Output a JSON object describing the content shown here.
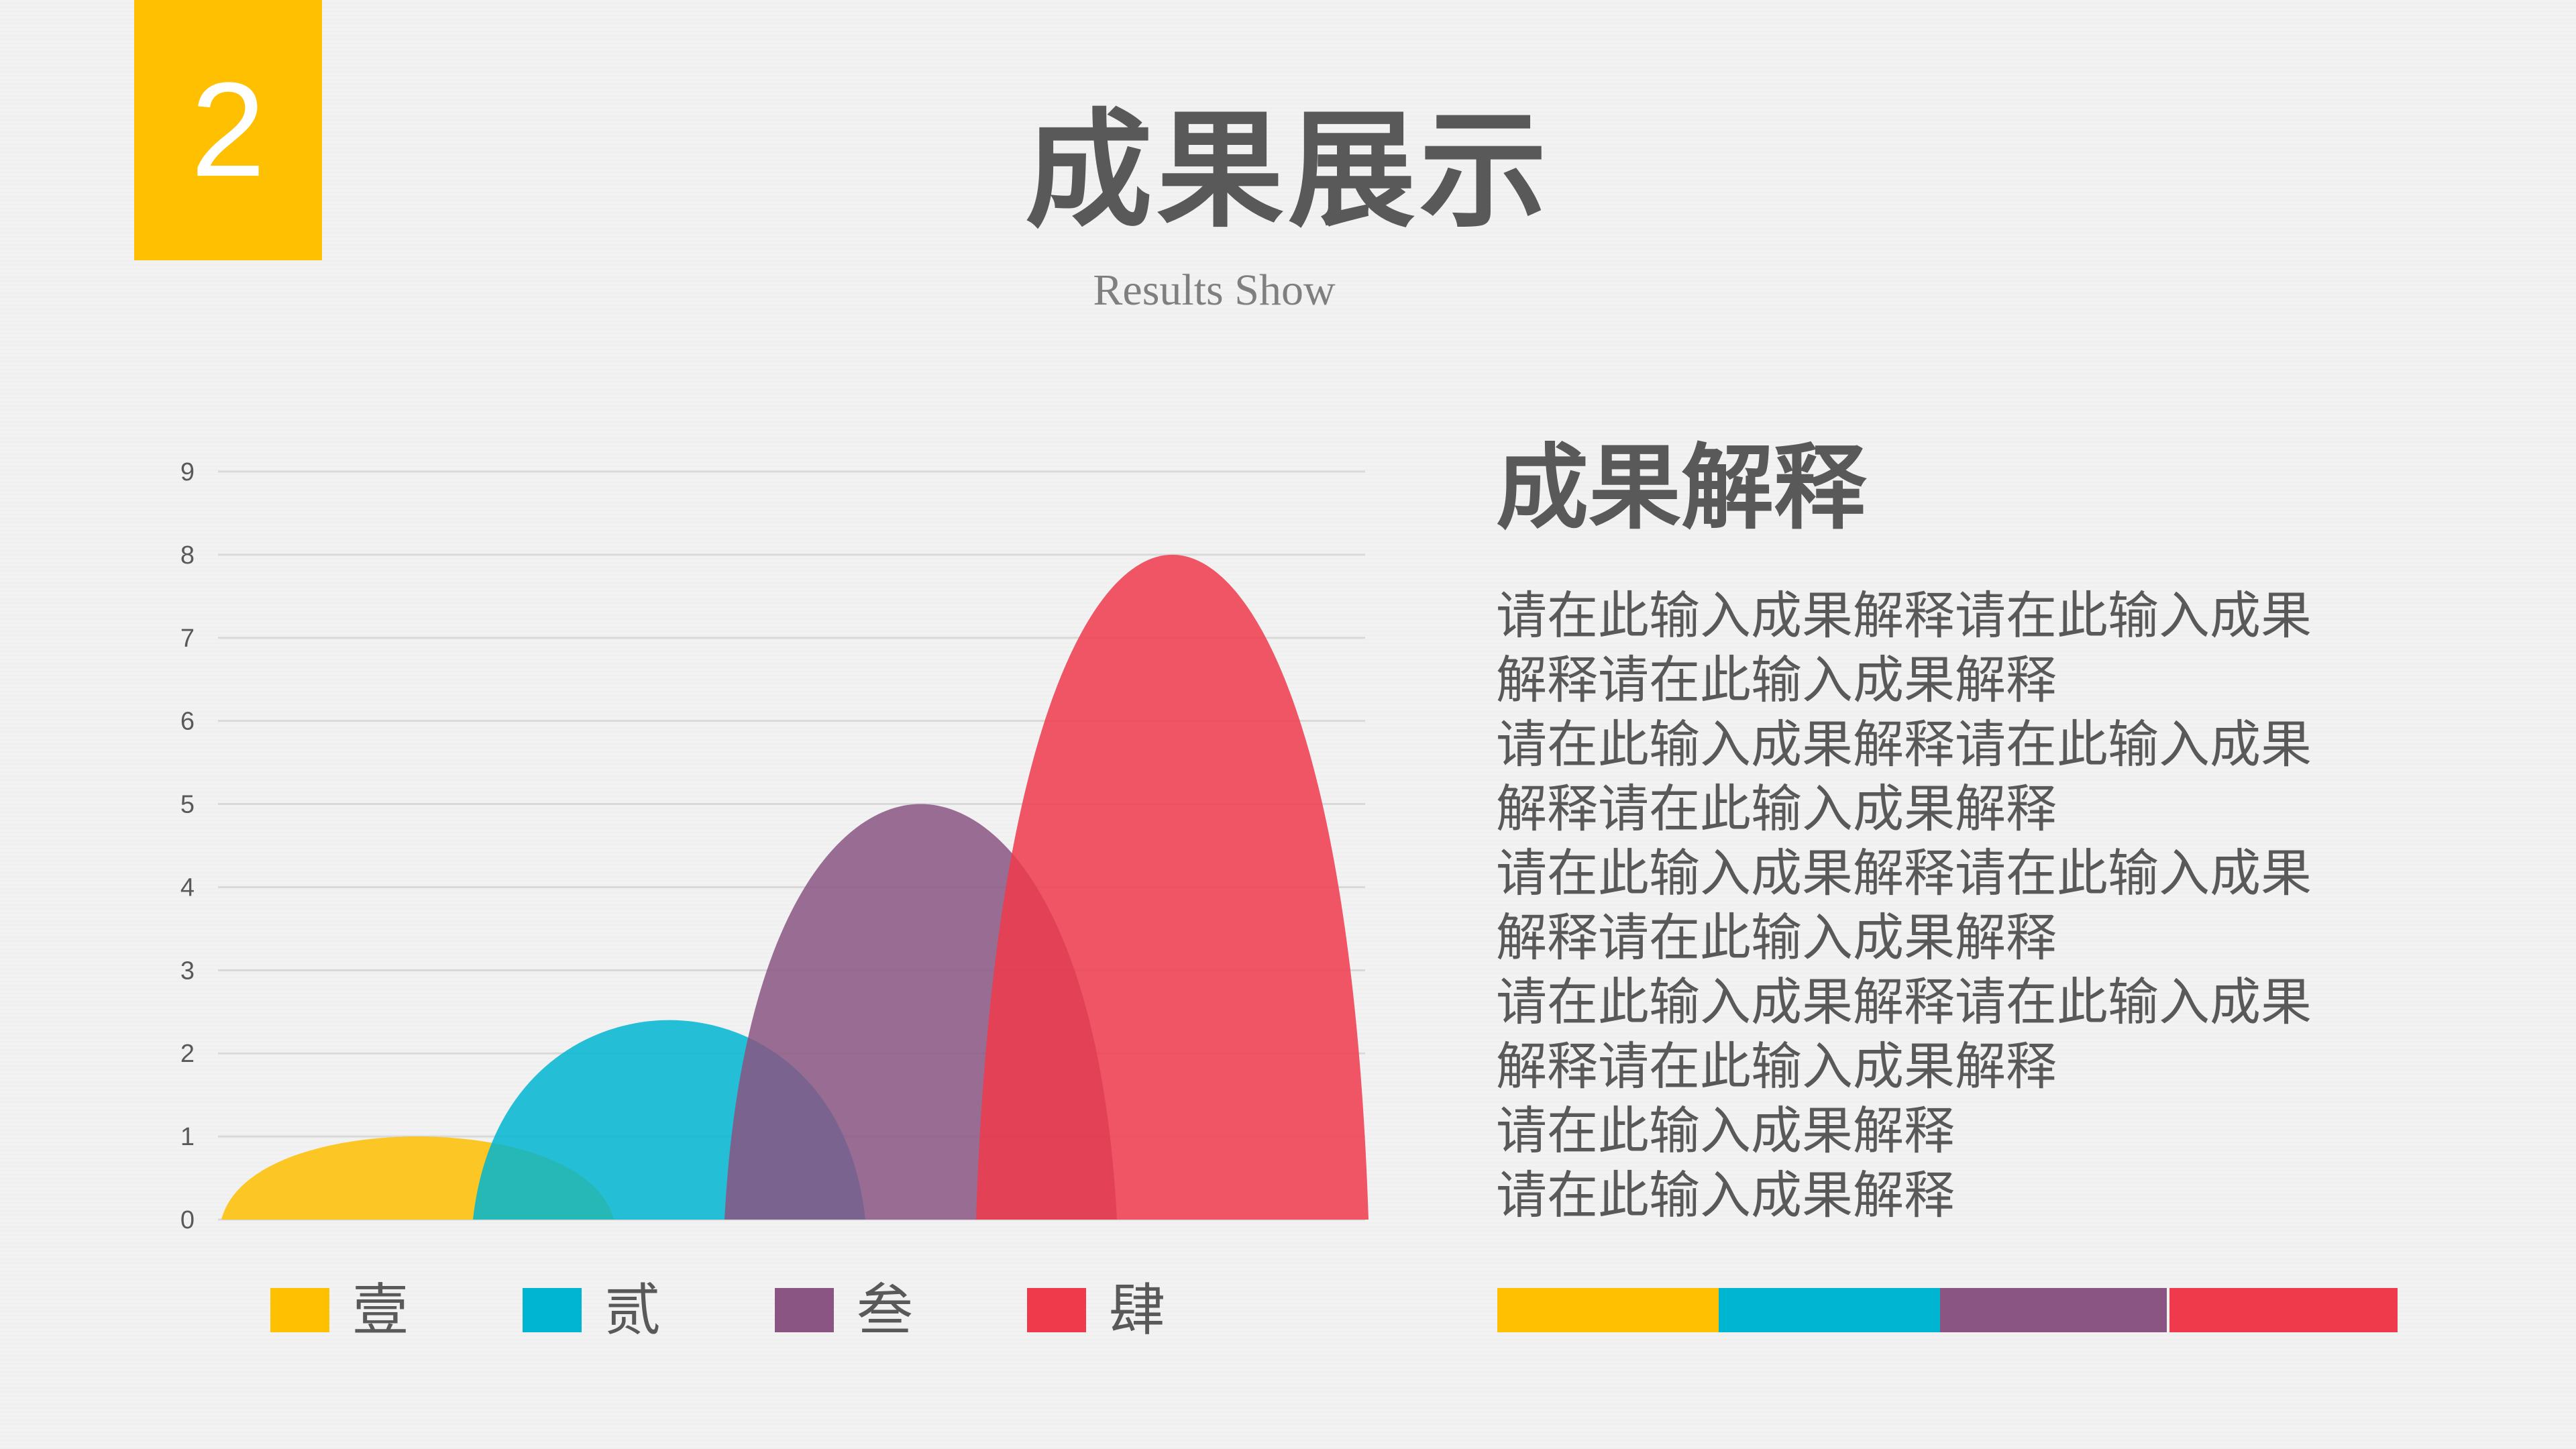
{
  "badge": {
    "number": "2"
  },
  "header": {
    "title": "成果展示",
    "subtitle": "Results Show"
  },
  "colors": {
    "accent_yellow": "#fec000",
    "accent_cyan": "#00b5d1",
    "accent_purple": "#8a5582",
    "accent_red": "#ef3a4b",
    "text_gray": "#595959",
    "background": "#f2f2f2"
  },
  "chart_data": {
    "type": "area",
    "shape": "bell-peaks",
    "categories": [
      "壹",
      "贰",
      "叁",
      "肆"
    ],
    "values": [
      1,
      2.4,
      5,
      8
    ],
    "colors": [
      "#fec000",
      "#00b5d1",
      "#8a5582",
      "#ef3a4b"
    ],
    "ylim": [
      0,
      9
    ],
    "yticks": [
      0,
      1,
      2,
      3,
      4,
      5,
      6,
      7,
      8,
      9
    ],
    "grid": true,
    "legend_position": "bottom",
    "title": "",
    "xlabel": "",
    "ylabel": ""
  },
  "explanation": {
    "heading": "成果解释",
    "lines": [
      "请在此输入成果解释请在此输入成果",
      "解释请在此输入成果解释",
      "请在此输入成果解释请在此输入成果",
      "解释请在此输入成果解释",
      "请在此输入成果解释请在此输入成果",
      "解释请在此输入成果解释",
      "请在此输入成果解释请在此输入成果",
      "解释请在此输入成果解释",
      "请在此输入成果解释",
      "请在此输入成果解释"
    ]
  }
}
